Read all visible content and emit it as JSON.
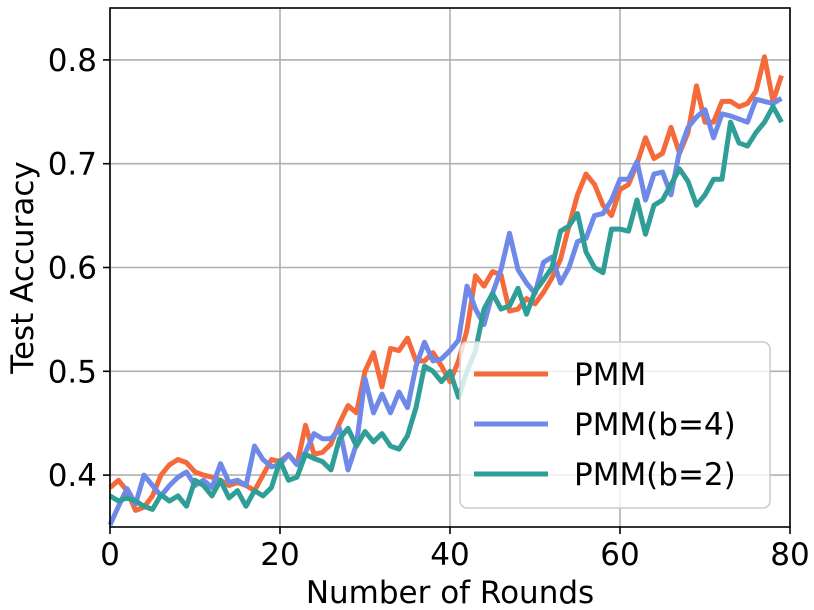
{
  "chart_data": {
    "type": "line",
    "title": "",
    "xlabel": "Number of Rounds",
    "ylabel": "Test Accuracy",
    "xlim": [
      0,
      80
    ],
    "ylim": [
      0.35,
      0.85
    ],
    "xticks": [
      0,
      20,
      40,
      60,
      80
    ],
    "yticks": [
      0.4,
      0.5,
      0.6,
      0.7,
      0.8
    ],
    "xtick_labels": [
      "0",
      "20",
      "40",
      "60",
      "80"
    ],
    "ytick_labels": [
      "0.4",
      "0.5",
      "0.6",
      "0.7",
      "0.8"
    ],
    "grid": true,
    "legend_position": "lower-right",
    "series": [
      {
        "name": "PMM",
        "color": "#f46a3a",
        "x": [
          0,
          1,
          2,
          3,
          4,
          5,
          6,
          7,
          8,
          9,
          10,
          11,
          12,
          13,
          14,
          15,
          16,
          17,
          18,
          19,
          20,
          21,
          22,
          23,
          24,
          25,
          26,
          27,
          28,
          29,
          30,
          31,
          32,
          33,
          34,
          35,
          36,
          37,
          38,
          39,
          40,
          41,
          42,
          43,
          44,
          45,
          46,
          47,
          48,
          49,
          50,
          51,
          52,
          53,
          54,
          55,
          56,
          57,
          58,
          59,
          60,
          61,
          62,
          63,
          64,
          65,
          66,
          67,
          68,
          69,
          70,
          71,
          72,
          73,
          74,
          75,
          76,
          77,
          78,
          79
        ],
        "y": [
          0.388,
          0.395,
          0.385,
          0.366,
          0.369,
          0.38,
          0.4,
          0.41,
          0.415,
          0.412,
          0.403,
          0.4,
          0.398,
          0.395,
          0.39,
          0.393,
          0.39,
          0.385,
          0.4,
          0.415,
          0.413,
          0.42,
          0.41,
          0.448,
          0.42,
          0.422,
          0.43,
          0.45,
          0.467,
          0.46,
          0.5,
          0.518,
          0.485,
          0.522,
          0.52,
          0.532,
          0.51,
          0.51,
          0.518,
          0.505,
          0.49,
          0.51,
          0.54,
          0.592,
          0.582,
          0.596,
          0.593,
          0.558,
          0.56,
          0.57,
          0.565,
          0.576,
          0.59,
          0.608,
          0.64,
          0.67,
          0.69,
          0.68,
          0.66,
          0.65,
          0.675,
          0.68,
          0.7,
          0.725,
          0.705,
          0.71,
          0.735,
          0.71,
          0.73,
          0.775,
          0.74,
          0.74,
          0.76,
          0.76,
          0.755,
          0.758,
          0.77,
          0.803,
          0.76,
          0.785
        ]
      },
      {
        "name": "PMM(b=4)",
        "color": "#6f89e8",
        "x": [
          0,
          1,
          2,
          3,
          4,
          5,
          6,
          7,
          8,
          9,
          10,
          11,
          12,
          13,
          14,
          15,
          16,
          17,
          18,
          19,
          20,
          21,
          22,
          23,
          24,
          25,
          26,
          27,
          28,
          29,
          30,
          31,
          32,
          33,
          34,
          35,
          36,
          37,
          38,
          39,
          40,
          41,
          42,
          43,
          44,
          45,
          46,
          47,
          48,
          49,
          50,
          51,
          52,
          53,
          54,
          55,
          56,
          57,
          58,
          59,
          60,
          61,
          62,
          63,
          64,
          65,
          66,
          67,
          68,
          69,
          70,
          71,
          72,
          73,
          74,
          75,
          76,
          77,
          78,
          79
        ],
        "y": [
          0.352,
          0.37,
          0.387,
          0.372,
          0.4,
          0.39,
          0.38,
          0.39,
          0.398,
          0.403,
          0.39,
          0.395,
          0.388,
          0.411,
          0.393,
          0.395,
          0.39,
          0.428,
          0.415,
          0.408,
          0.41,
          0.42,
          0.41,
          0.422,
          0.44,
          0.435,
          0.435,
          0.445,
          0.405,
          0.43,
          0.493,
          0.46,
          0.478,
          0.46,
          0.48,
          0.465,
          0.505,
          0.528,
          0.51,
          0.512,
          0.52,
          0.53,
          0.582,
          0.56,
          0.545,
          0.575,
          0.598,
          0.633,
          0.598,
          0.585,
          0.575,
          0.605,
          0.61,
          0.585,
          0.6,
          0.625,
          0.628,
          0.65,
          0.652,
          0.665,
          0.685,
          0.685,
          0.702,
          0.665,
          0.69,
          0.692,
          0.67,
          0.712,
          0.735,
          0.745,
          0.752,
          0.725,
          0.748,
          0.746,
          0.743,
          0.74,
          0.762,
          0.76,
          0.758,
          0.763
        ]
      },
      {
        "name": "PMM(b=2)",
        "color": "#2f9e96",
        "x": [
          0,
          1,
          2,
          3,
          4,
          5,
          6,
          7,
          8,
          9,
          10,
          11,
          12,
          13,
          14,
          15,
          16,
          17,
          18,
          19,
          20,
          21,
          22,
          23,
          24,
          25,
          26,
          27,
          28,
          29,
          30,
          31,
          32,
          33,
          34,
          35,
          36,
          37,
          38,
          39,
          40,
          41,
          42,
          43,
          44,
          45,
          46,
          47,
          48,
          49,
          50,
          51,
          52,
          53,
          54,
          55,
          56,
          57,
          58,
          59,
          60,
          61,
          62,
          63,
          64,
          65,
          66,
          67,
          68,
          69,
          70,
          71,
          72,
          73,
          74,
          75,
          76,
          77,
          78,
          79
        ],
        "y": [
          0.38,
          0.375,
          0.378,
          0.375,
          0.37,
          0.367,
          0.381,
          0.375,
          0.38,
          0.37,
          0.395,
          0.39,
          0.38,
          0.395,
          0.378,
          0.385,
          0.37,
          0.385,
          0.38,
          0.388,
          0.414,
          0.395,
          0.398,
          0.42,
          0.416,
          0.413,
          0.405,
          0.435,
          0.445,
          0.428,
          0.442,
          0.432,
          0.44,
          0.428,
          0.425,
          0.438,
          0.465,
          0.505,
          0.5,
          0.49,
          0.5,
          0.475,
          0.5,
          0.52,
          0.56,
          0.575,
          0.56,
          0.563,
          0.58,
          0.555,
          0.577,
          0.588,
          0.6,
          0.635,
          0.64,
          0.652,
          0.615,
          0.6,
          0.595,
          0.637,
          0.637,
          0.635,
          0.665,
          0.632,
          0.66,
          0.665,
          0.68,
          0.695,
          0.683,
          0.66,
          0.67,
          0.685,
          0.685,
          0.74,
          0.72,
          0.717,
          0.73,
          0.74,
          0.755,
          0.74
        ]
      }
    ]
  }
}
